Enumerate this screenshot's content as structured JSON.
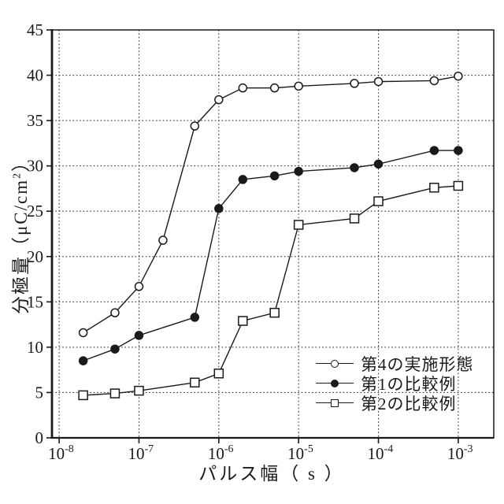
{
  "colors": {
    "ink": "#1a1a1a",
    "grid": "#333333",
    "background": "#ffffff"
  },
  "chart_data": {
    "type": "line",
    "title": "",
    "xlabel": "パルス幅（ s ）",
    "ylabel_prefix": "分極量（μC/cm",
    "ylabel_sup": "2",
    "ylabel_suffix": "）",
    "x_scale": "log",
    "x_tick_base": "10",
    "x_tick_exponents": [
      -8,
      -7,
      -6,
      -5,
      -4,
      -3
    ],
    "y_ticks": [
      0,
      5,
      10,
      15,
      20,
      25,
      30,
      35,
      40,
      45
    ],
    "xlim_exponents": [
      -8.09,
      -2.555
    ],
    "ylim": [
      0,
      45
    ],
    "grid": "dotted",
    "legend_position": "lower-right",
    "series": [
      {
        "name": "第4の実施形態",
        "marker": "circle-open",
        "x": [
          2e-08,
          5e-08,
          1e-07,
          2e-07,
          5e-07,
          1e-06,
          2e-06,
          5e-06,
          1e-05,
          5e-05,
          0.0001,
          0.0005,
          0.001
        ],
        "y": [
          11.6,
          13.8,
          16.7,
          21.8,
          34.4,
          37.3,
          38.6,
          38.6,
          38.8,
          39.1,
          39.3,
          39.4,
          39.9
        ]
      },
      {
        "name": "第1の比較例",
        "marker": "circle-filled",
        "x": [
          2e-08,
          5e-08,
          1e-07,
          5e-07,
          1e-06,
          2e-06,
          5e-06,
          1e-05,
          5e-05,
          0.0001,
          0.0005,
          0.001
        ],
        "y": [
          8.5,
          9.8,
          11.3,
          13.3,
          25.3,
          28.5,
          28.9,
          29.4,
          29.8,
          30.2,
          31.7,
          31.7
        ]
      },
      {
        "name": "第2の比較例",
        "marker": "square-open",
        "x": [
          2e-08,
          5e-08,
          1e-07,
          5e-07,
          1e-06,
          2e-06,
          5e-06,
          1e-05,
          5e-05,
          0.0001,
          0.0005,
          0.001
        ],
        "y": [
          4.7,
          4.9,
          5.2,
          6.1,
          7.1,
          12.9,
          13.8,
          23.5,
          24.2,
          26.1,
          27.6,
          27.8
        ]
      }
    ]
  }
}
